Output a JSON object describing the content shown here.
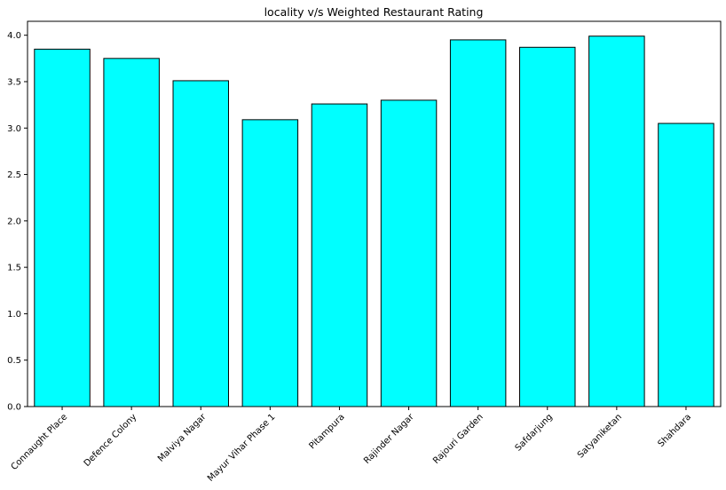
{
  "chart_data": {
    "type": "bar",
    "title": "locality v/s Weighted Restaurant Rating",
    "xlabel": "",
    "ylabel": "",
    "categories": [
      "Connaught Place",
      "Defence Colony",
      "Malviya Nagar",
      "Mayur Vihar Phase 1",
      "Pitampura",
      "Rajinder Nagar",
      "Rajouri Garden",
      "Safdarjung",
      "Satyaniketan",
      "Shahdara"
    ],
    "values": [
      3.85,
      3.75,
      3.51,
      3.09,
      3.26,
      3.3,
      3.95,
      3.87,
      3.99,
      3.05
    ],
    "ylim": [
      0,
      4.15
    ],
    "yticks": [
      "0.0",
      "0.5",
      "1.0",
      "1.5",
      "2.0",
      "2.5",
      "3.0",
      "3.5",
      "4.0"
    ],
    "bar_color": "#00ffff",
    "edge_color": "#000000",
    "grid": false,
    "legend": "none"
  }
}
